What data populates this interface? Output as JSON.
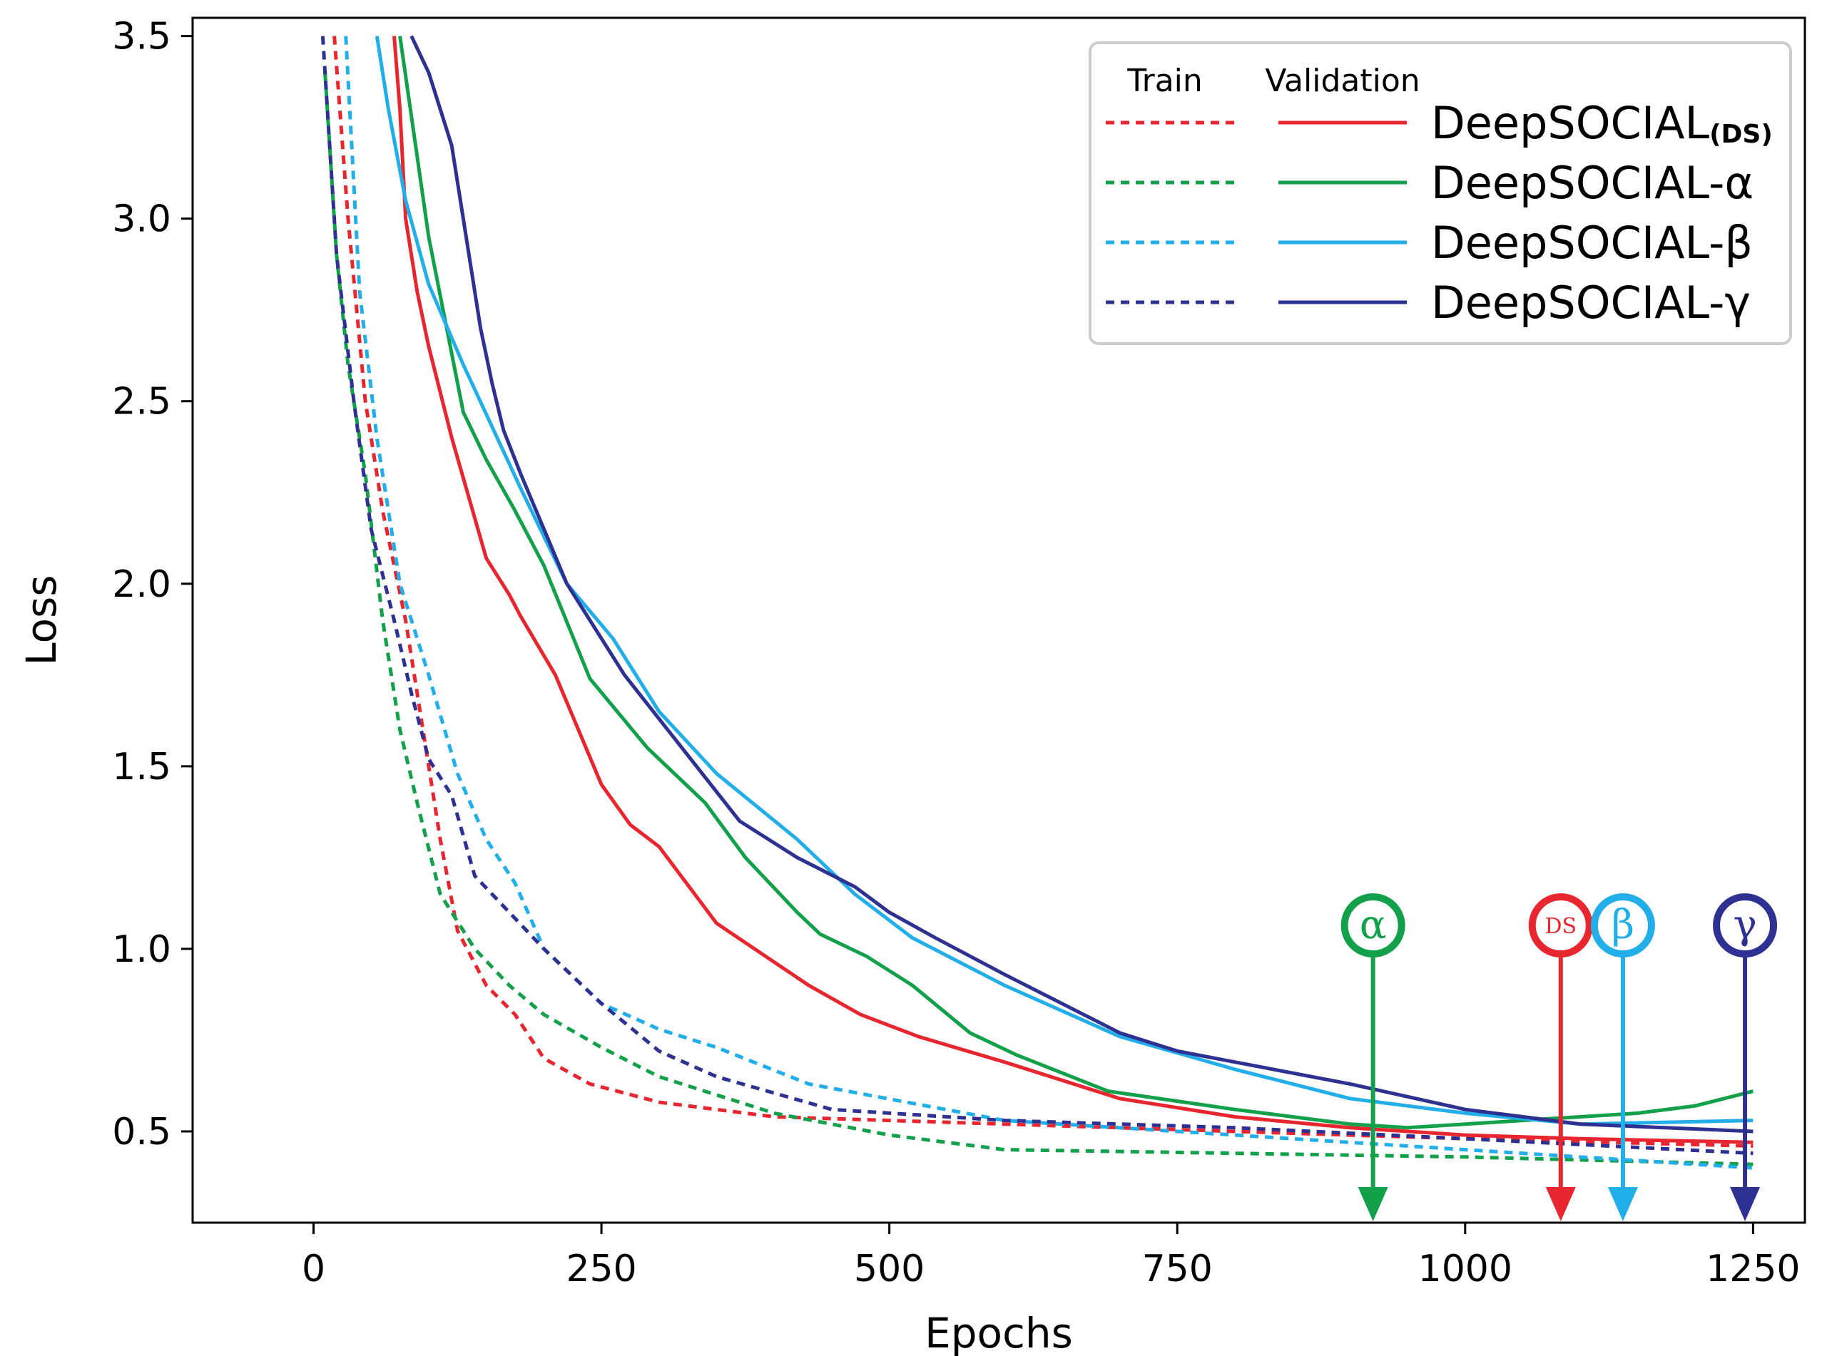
{
  "chart_data": {
    "type": "line",
    "title": "",
    "xlabel": "Epochs",
    "ylabel": "Loss",
    "xlim": [
      -105,
      1295
    ],
    "ylim": [
      0.25,
      3.55
    ],
    "xticks": [
      0,
      250,
      500,
      750,
      1000,
      1250
    ],
    "xtick_labels": [
      "0",
      "250",
      "500",
      "750",
      "1000",
      "1250"
    ],
    "yticks": [
      0.5,
      1.0,
      1.5,
      2.0,
      2.5,
      3.0,
      3.5
    ],
    "ytick_labels": [
      "0.5",
      "1.0",
      "1.5",
      "2.0",
      "2.5",
      "3.0",
      "3.5"
    ],
    "grid": false,
    "legend": {
      "placement": "top-right",
      "header_train": "Train",
      "header_validation": "Validation",
      "entries": [
        {
          "label": "DeepSOCIAL",
          "suffix": "(DS)",
          "color": "#E8262F"
        },
        {
          "label": "DeepSOCIAL-α",
          "suffix": "",
          "color": "#12A04A"
        },
        {
          "label": "DeepSOCIAL-β",
          "suffix": "",
          "color": "#22AEE8"
        },
        {
          "label": "DeepSOCIAL-γ",
          "suffix": "",
          "color": "#2E3191"
        }
      ]
    },
    "series": [
      {
        "name": "DeepSOCIAL (DS) Train",
        "model": "DS",
        "split": "train",
        "style": "dashed",
        "color": "#E8262F",
        "x": [
          18,
          30,
          45,
          60,
          80,
          95,
          110,
          125,
          150,
          175,
          200,
          240,
          300,
          400,
          600,
          800,
          1000,
          1250
        ],
        "y": [
          3.5,
          3.0,
          2.5,
          2.2,
          1.9,
          1.6,
          1.3,
          1.05,
          0.9,
          0.82,
          0.7,
          0.63,
          0.58,
          0.54,
          0.52,
          0.5,
          0.48,
          0.46
        ]
      },
      {
        "name": "DeepSOCIAL (DS) Validation",
        "model": "DS",
        "split": "validation",
        "style": "solid",
        "color": "#E8262F",
        "x": [
          70,
          75,
          80,
          90,
          100,
          120,
          150,
          170,
          180,
          210,
          250,
          275,
          300,
          350,
          430,
          475,
          525,
          600,
          700,
          800,
          900,
          1000,
          1100,
          1250
        ],
        "y": [
          3.5,
          3.3,
          3.0,
          2.8,
          2.65,
          2.4,
          2.07,
          1.97,
          1.91,
          1.75,
          1.45,
          1.34,
          1.28,
          1.07,
          0.9,
          0.82,
          0.76,
          0.69,
          0.59,
          0.54,
          0.51,
          0.49,
          0.48,
          0.47
        ]
      },
      {
        "name": "DeepSOCIAL-α Train",
        "model": "α",
        "split": "train",
        "style": "dashed",
        "color": "#12A04A",
        "x": [
          10,
          20,
          30,
          45,
          60,
          75,
          90,
          110,
          140,
          170,
          200,
          250,
          300,
          400,
          500,
          600,
          800,
          1000,
          1250
        ],
        "y": [
          3.4,
          2.9,
          2.6,
          2.3,
          1.9,
          1.6,
          1.4,
          1.15,
          1.0,
          0.9,
          0.82,
          0.73,
          0.65,
          0.55,
          0.49,
          0.45,
          0.44,
          0.43,
          0.41
        ]
      },
      {
        "name": "DeepSOCIAL-α Validation",
        "model": "α",
        "split": "validation",
        "style": "solid",
        "color": "#12A04A",
        "x": [
          75,
          100,
          130,
          150,
          175,
          200,
          240,
          290,
          340,
          375,
          420,
          440,
          480,
          520,
          570,
          610,
          690,
          800,
          900,
          950,
          1000,
          1100,
          1150,
          1200,
          1250
        ],
        "y": [
          3.5,
          2.95,
          2.47,
          2.34,
          2.2,
          2.05,
          1.74,
          1.55,
          1.4,
          1.25,
          1.1,
          1.04,
          0.98,
          0.9,
          0.77,
          0.71,
          0.61,
          0.56,
          0.52,
          0.51,
          0.52,
          0.54,
          0.55,
          0.57,
          0.61
        ]
      },
      {
        "name": "DeepSOCIAL-β Train",
        "model": "β",
        "split": "train",
        "style": "dashed",
        "color": "#22AEE8",
        "x": [
          28,
          40,
          55,
          75,
          100,
          125,
          150,
          175,
          200,
          250,
          300,
          350,
          430,
          600,
          800,
          1000,
          1250
        ],
        "y": [
          3.5,
          2.8,
          2.4,
          2.0,
          1.75,
          1.48,
          1.3,
          1.18,
          1.0,
          0.85,
          0.78,
          0.73,
          0.63,
          0.53,
          0.49,
          0.45,
          0.4
        ]
      },
      {
        "name": "DeepSOCIAL-β Validation",
        "model": "β",
        "split": "validation",
        "style": "solid",
        "color": "#22AEE8",
        "x": [
          55,
          65,
          80,
          100,
          130,
          180,
          220,
          260,
          300,
          350,
          420,
          470,
          520,
          600,
          700,
          800,
          900,
          1000,
          1100,
          1250
        ],
        "y": [
          3.5,
          3.3,
          3.05,
          2.82,
          2.6,
          2.26,
          2.0,
          1.85,
          1.65,
          1.48,
          1.3,
          1.15,
          1.03,
          0.9,
          0.76,
          0.67,
          0.59,
          0.55,
          0.52,
          0.53
        ]
      },
      {
        "name": "DeepSOCIAL-γ Train",
        "model": "γ",
        "split": "train",
        "style": "dashed",
        "color": "#2E3191",
        "x": [
          8,
          20,
          35,
          50,
          70,
          85,
          100,
          120,
          140,
          170,
          200,
          250,
          300,
          350,
          450,
          600,
          800,
          1000,
          1250
        ],
        "y": [
          3.5,
          2.9,
          2.5,
          2.15,
          1.9,
          1.7,
          1.52,
          1.42,
          1.2,
          1.1,
          1.0,
          0.85,
          0.72,
          0.65,
          0.56,
          0.53,
          0.51,
          0.48,
          0.44
        ]
      },
      {
        "name": "DeepSOCIAL-γ Validation",
        "model": "γ",
        "split": "validation",
        "style": "solid",
        "color": "#2E3191",
        "x": [
          85,
          100,
          110,
          120,
          130,
          145,
          155,
          165,
          180,
          200,
          220,
          240,
          270,
          320,
          370,
          420,
          470,
          500,
          540,
          600,
          700,
          750,
          800,
          900,
          1000,
          1100,
          1250
        ],
        "y": [
          3.5,
          3.4,
          3.3,
          3.2,
          3.0,
          2.7,
          2.55,
          2.42,
          2.3,
          2.15,
          2.0,
          1.9,
          1.75,
          1.55,
          1.35,
          1.25,
          1.17,
          1.1,
          1.03,
          0.93,
          0.77,
          0.72,
          0.69,
          0.63,
          0.56,
          0.52,
          0.5
        ]
      }
    ],
    "annotations": [
      {
        "label": "α",
        "epoch": 920,
        "color": "#12A04A",
        "font": "serif-large"
      },
      {
        "label": "DS",
        "epoch": 1083,
        "color": "#E8262F",
        "font": "serif-small"
      },
      {
        "label": "β",
        "epoch": 1137,
        "color": "#22AEE8",
        "font": "serif-large"
      },
      {
        "label": "γ",
        "epoch": 1243,
        "color": "#2E3191",
        "font": "serif-large"
      }
    ]
  }
}
